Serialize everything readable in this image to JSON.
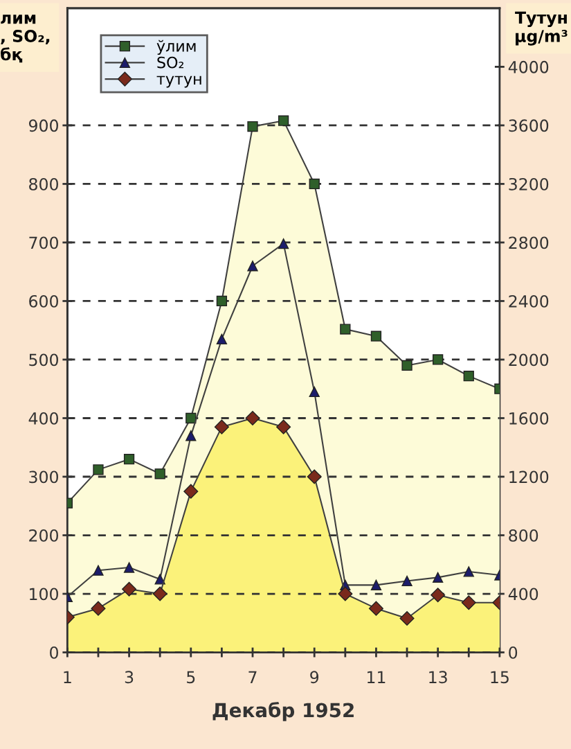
{
  "chart_data": {
    "type": "line",
    "xlabel": "Декабр 1952",
    "ylabel": "лим\n, SO₂,\nбқ",
    "y2label": "Тутун\nμg/m³",
    "x": [
      1,
      2,
      3,
      4,
      5,
      6,
      7,
      8,
      9,
      10,
      11,
      12,
      13,
      14,
      15
    ],
    "series": [
      {
        "name": "ўлим",
        "type": "area",
        "color": "#fdfbd8",
        "marker": "square",
        "values": [
          255,
          312,
          330,
          305,
          400,
          600,
          898,
          908,
          800,
          552,
          540,
          490,
          500,
          472,
          450
        ]
      },
      {
        "name": "SO₂",
        "color": "#1c1c6b",
        "marker": "triangle",
        "values": [
          95,
          140,
          145,
          125,
          370,
          535,
          660,
          698,
          445,
          115,
          115,
          122,
          128,
          138,
          132
        ]
      },
      {
        "name": "тутун",
        "type": "area",
        "axis": "y2",
        "color": "#fbf27a",
        "marker": "diamond",
        "values": [
          240,
          300,
          432,
          400,
          1100,
          1540,
          1600,
          1540,
          1200,
          400,
          300,
          232,
          392,
          340,
          340
        ]
      }
    ],
    "xlim": [
      1,
      15
    ],
    "xticks": [
      1,
      {
        "value": 2,
        "label": null
      },
      3,
      {
        "value": 4,
        "label": null
      },
      5,
      {
        "value": 6,
        "label": null
      },
      7,
      {
        "value": 8,
        "label": null
      },
      9,
      {
        "value": 10,
        "label": null
      },
      11,
      {
        "value": 12,
        "label": null
      },
      13,
      {
        "value": 14,
        "label": null
      },
      15
    ],
    "ylim": [
      0,
      1100
    ],
    "yticks": [
      0,
      100,
      200,
      300,
      400,
      500,
      600,
      700,
      800,
      900
    ],
    "y2lim": [
      0,
      4400
    ],
    "y2ticks": [
      0,
      400,
      800,
      1200,
      1600,
      2000,
      2400,
      2800,
      3200,
      3600,
      4000
    ],
    "grid": "y",
    "legend": "top left",
    "line_style": "solid"
  }
}
